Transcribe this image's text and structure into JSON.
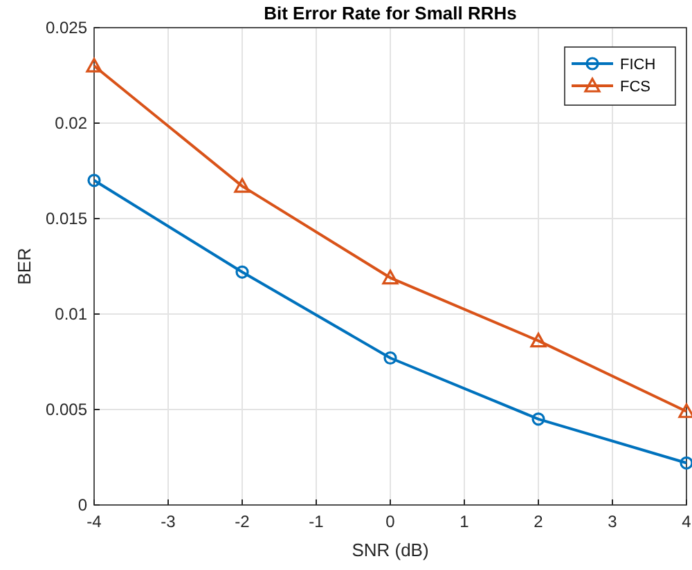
{
  "chart_data": {
    "type": "line",
    "title": "Bit Error Rate for Small RRHs",
    "xlabel": "SNR (dB)",
    "ylabel": "BER",
    "x": [
      -4,
      -2,
      0,
      2,
      4
    ],
    "series": [
      {
        "name": "FICH",
        "color": "#0072bd",
        "marker": "circle",
        "values": [
          0.017,
          0.0122,
          0.0077,
          0.0045,
          0.0022
        ]
      },
      {
        "name": "FCS",
        "color": "#d95319",
        "marker": "triangle",
        "values": [
          0.023,
          0.0167,
          0.0119,
          0.0086,
          0.0049
        ]
      }
    ],
    "xlim": [
      -4,
      4
    ],
    "xticks": [
      -4,
      -3,
      -2,
      -1,
      0,
      1,
      2,
      3,
      4
    ],
    "ylim": [
      0,
      0.025
    ],
    "yticks": [
      0,
      0.005,
      0.01,
      0.015,
      0.02,
      0.025
    ],
    "grid": true,
    "legend": "top right",
    "line_style": "solid"
  }
}
